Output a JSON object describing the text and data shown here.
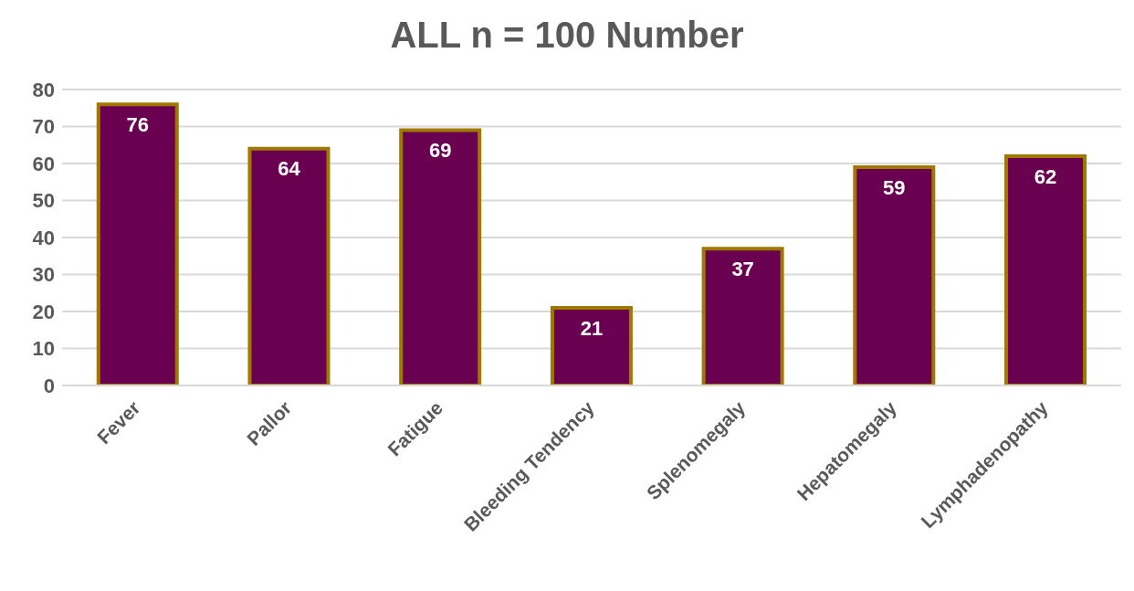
{
  "chart_data": {
    "type": "bar",
    "title": "ALL n = 100 Number",
    "categories": [
      "Fever",
      "Pallor",
      "Fatigue",
      "Bleeding Tendency",
      "Splenomegaly",
      "Hepatomegaly",
      "Lymphadenopathy"
    ],
    "values": [
      76,
      64,
      69,
      21,
      37,
      59,
      62
    ],
    "color": "#6a0050",
    "ylim": [
      0,
      80
    ],
    "yticks": [
      0,
      10,
      20,
      30,
      40,
      50,
      60,
      70,
      80
    ],
    "grid": "y",
    "data_labels": true
  }
}
